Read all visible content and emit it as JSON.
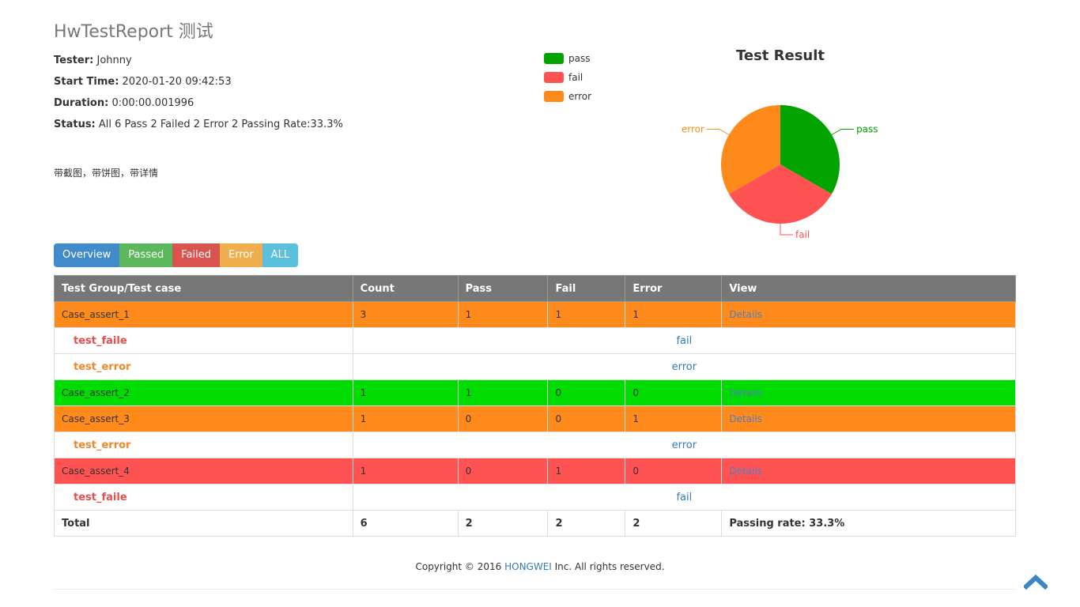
{
  "header": {
    "title": "HwTestReport 测试",
    "tester_label": "Tester:",
    "tester": "Johnny",
    "start_label": "Start Time:",
    "start_time": "2020-01-20 09:42:53",
    "duration_label": "Duration:",
    "duration": "0:00:00.001996",
    "status_label": "Status:",
    "status": "All 6 Pass 2 Failed 2 Error 2 Passing Rate:33.3%",
    "description": "带截图，带饼图，带详情"
  },
  "legend": [
    {
      "label": "pass",
      "color": "#00a300"
    },
    {
      "label": "fail",
      "color": "#ff5353"
    },
    {
      "label": "error",
      "color": "#ff8a1c"
    }
  ],
  "chart_data": {
    "type": "pie",
    "title": "Test Result",
    "slices": [
      {
        "label": "pass",
        "value": 2,
        "color": "#00a300"
      },
      {
        "label": "fail",
        "value": 2,
        "color": "#ff5353"
      },
      {
        "label": "error",
        "value": 2,
        "color": "#ff8a1c"
      }
    ]
  },
  "filters": [
    "Overview",
    "Passed",
    "Failed",
    "Error",
    "ALL"
  ],
  "table": {
    "headers": [
      "Test Group/Test case",
      "Count",
      "Pass",
      "Fail",
      "Error",
      "View"
    ],
    "details_label": "Details",
    "rows": [
      {
        "name": "Case_assert_1",
        "count": "3",
        "pass": "1",
        "fail": "1",
        "error": "1"
      },
      {
        "case": "test_faile",
        "result": "fail"
      },
      {
        "case": "test_error",
        "result": "error"
      },
      {
        "name": "Case_assert_2",
        "count": "1",
        "pass": "1",
        "fail": "0",
        "error": "0"
      },
      {
        "name": "Case_assert_3",
        "count": "1",
        "pass": "0",
        "fail": "0",
        "error": "1"
      },
      {
        "case": "test_error",
        "result": "error"
      },
      {
        "name": "Case_assert_4",
        "count": "1",
        "pass": "0",
        "fail": "1",
        "error": "0"
      },
      {
        "case": "test_faile",
        "result": "fail"
      }
    ],
    "total": {
      "label": "Total",
      "count": "6",
      "pass": "2",
      "fail": "2",
      "error": "2",
      "rate_label": "Passing rate:",
      "rate": "33.3%"
    }
  },
  "footer": {
    "prefix": "Copyright © 2016 ",
    "brand": "HONGWEI",
    "suffix": " Inc. All rights reserved."
  }
}
